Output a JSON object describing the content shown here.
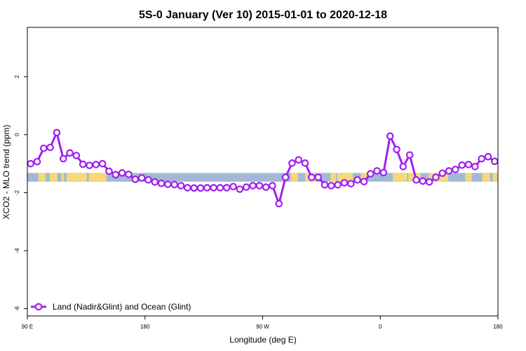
{
  "chart_data": {
    "type": "line",
    "title": "5S-0 January (Ver 10)   2015-01-01 to 2020-12-18",
    "xlabel": "Longitude (deg E)",
    "ylabel": "XCO2 - MLO trend (ppm)",
    "xlim": [
      90,
      450
    ],
    "ylim": [
      -6.25,
      3.7
    ],
    "x_ticks": [
      {
        "value": 90,
        "label": "90 E"
      },
      {
        "value": 180,
        "label": "180"
      },
      {
        "value": 270,
        "label": "90 W"
      },
      {
        "value": 360,
        "label": "0"
      },
      {
        "value": 450,
        "label": "180"
      },
      {
        "value": 540,
        "label": "90 E"
      }
    ],
    "x_ticks_note": "axis spans 90 E through 180 with ticks every 90 deg",
    "y_ticks": [
      -6,
      -4,
      -2,
      0,
      2
    ],
    "grid": false,
    "legend_position": "bottom-left",
    "colors": {
      "series": "#a020f0",
      "ocean_band": "#a3b8d6",
      "land_band": "#f6d878"
    },
    "band": {
      "y_top": -1.32,
      "y_bottom": -1.62
    },
    "land_segments": [
      [
        98.5,
        104
      ],
      [
        107,
        113
      ],
      [
        116,
        118
      ],
      [
        120,
        131
      ],
      [
        131,
        135.5
      ],
      [
        137,
        150.5
      ],
      [
        291.5,
        297
      ],
      [
        302.5,
        310
      ],
      [
        322,
        326
      ],
      [
        327,
        339
      ],
      [
        345,
        350
      ],
      [
        369.5,
        380.5
      ],
      [
        381.5,
        391
      ],
      [
        397,
        412
      ],
      [
        425,
        430
      ],
      [
        438,
        444
      ],
      [
        446,
        454
      ],
      [
        456,
        469
      ],
      [
        470,
        476
      ],
      [
        476,
        486.5
      ]
    ],
    "series": [
      {
        "name": "Land (Nadir&Glint) and Ocean (Glint)",
        "x": [
          92.5,
          97.5,
          102.5,
          107.5,
          112.5,
          117.5,
          122.5,
          127.5,
          132.5,
          137.5,
          142.5,
          147.5,
          152.5,
          157.5,
          162.5,
          167.5,
          172.5,
          177.5,
          182.5,
          187.5,
          192.5,
          197.5,
          202.5,
          207.5,
          212.5,
          217.5,
          222.5,
          227.5,
          232.5,
          237.5,
          242.5,
          247.5,
          252.5,
          257.5,
          262.5,
          267.5,
          272.5,
          277.5,
          282.5,
          287.5,
          292.5,
          297.5,
          302.5,
          307.5,
          312.5,
          317.5,
          322.5,
          327.5,
          332.5,
          337.5,
          342.5,
          347.5,
          352.5,
          357.5,
          362.5,
          367.5,
          372.5,
          377.5,
          382.5,
          387.5,
          392.5,
          397.5,
          402.5,
          407.5,
          412.5,
          417.5,
          422.5,
          427.5,
          432.5,
          437.5,
          442.5,
          447.5
        ],
        "y": [
          -1.0,
          -0.93,
          -0.47,
          -0.44,
          0.07,
          -0.83,
          -0.63,
          -0.72,
          -1.02,
          -1.06,
          -1.03,
          -1.0,
          -1.26,
          -1.38,
          -1.32,
          -1.37,
          -1.54,
          -1.49,
          -1.56,
          -1.63,
          -1.68,
          -1.71,
          -1.72,
          -1.76,
          -1.83,
          -1.84,
          -1.84,
          -1.83,
          -1.83,
          -1.83,
          -1.83,
          -1.79,
          -1.88,
          -1.81,
          -1.76,
          -1.76,
          -1.81,
          -1.76,
          -2.38,
          -1.47,
          -0.98,
          -0.87,
          -0.98,
          -1.47,
          -1.47,
          -1.73,
          -1.76,
          -1.73,
          -1.66,
          -1.69,
          -1.56,
          -1.62,
          -1.35,
          -1.25,
          -1.31,
          -0.05,
          -0.51,
          -1.1,
          -0.7,
          -1.56,
          -1.6,
          -1.63,
          -1.47,
          -1.33,
          -1.25,
          -1.2,
          -1.05,
          -1.03,
          -1.1,
          -0.83,
          -0.76,
          -0.92
        ]
      }
    ]
  }
}
